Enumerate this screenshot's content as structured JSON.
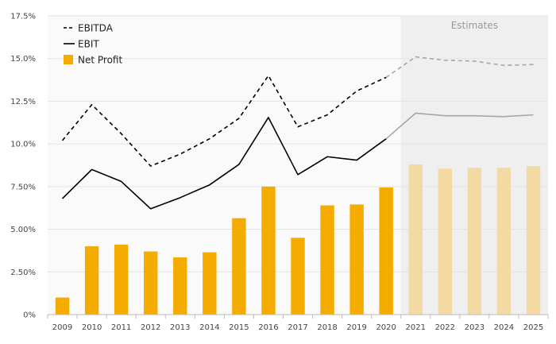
{
  "chart_data": {
    "type": "bar+line",
    "categories": [
      "2009",
      "2010",
      "2011",
      "2012",
      "2013",
      "2014",
      "2015",
      "2016",
      "2017",
      "2018",
      "2019",
      "2020",
      "2021",
      "2022",
      "2023",
      "2024",
      "2025"
    ],
    "y_ticks": [
      "0%",
      "2.50%",
      "5.00%",
      "7.50%",
      "10.0%",
      "12.5%",
      "15.0%",
      "17.5%"
    ],
    "ylim": [
      0,
      17.5
    ],
    "grid": true,
    "legend_position": "top-left",
    "estimates_label": "Estimates",
    "estimates_start": "2021",
    "series": [
      {
        "name": "EBITDA",
        "type": "line",
        "style": "dashed",
        "color": "#000000",
        "estimate_color": "#a6a6a6",
        "values": [
          10.2,
          12.3,
          10.6,
          8.7,
          9.4,
          10.3,
          11.5,
          14.0,
          11.0,
          11.7,
          13.1,
          13.9,
          15.1,
          14.9,
          14.85,
          14.6,
          14.65
        ]
      },
      {
        "name": "EBIT",
        "type": "line",
        "style": "solid",
        "color": "#000000",
        "estimate_color": "#a6a6a6",
        "values": [
          6.8,
          8.5,
          7.8,
          6.2,
          6.85,
          7.6,
          8.8,
          11.55,
          8.2,
          9.25,
          9.05,
          10.3,
          11.8,
          11.65,
          11.65,
          11.6,
          11.7
        ]
      },
      {
        "name": "Net Profit",
        "type": "bar",
        "color": "#f5ac00",
        "estimate_color": "#f3d9a2",
        "values": [
          1.0,
          4.0,
          4.1,
          3.7,
          3.35,
          3.65,
          5.65,
          7.5,
          4.5,
          6.4,
          6.45,
          7.45,
          8.8,
          8.55,
          8.6,
          8.6,
          8.7
        ]
      }
    ]
  }
}
